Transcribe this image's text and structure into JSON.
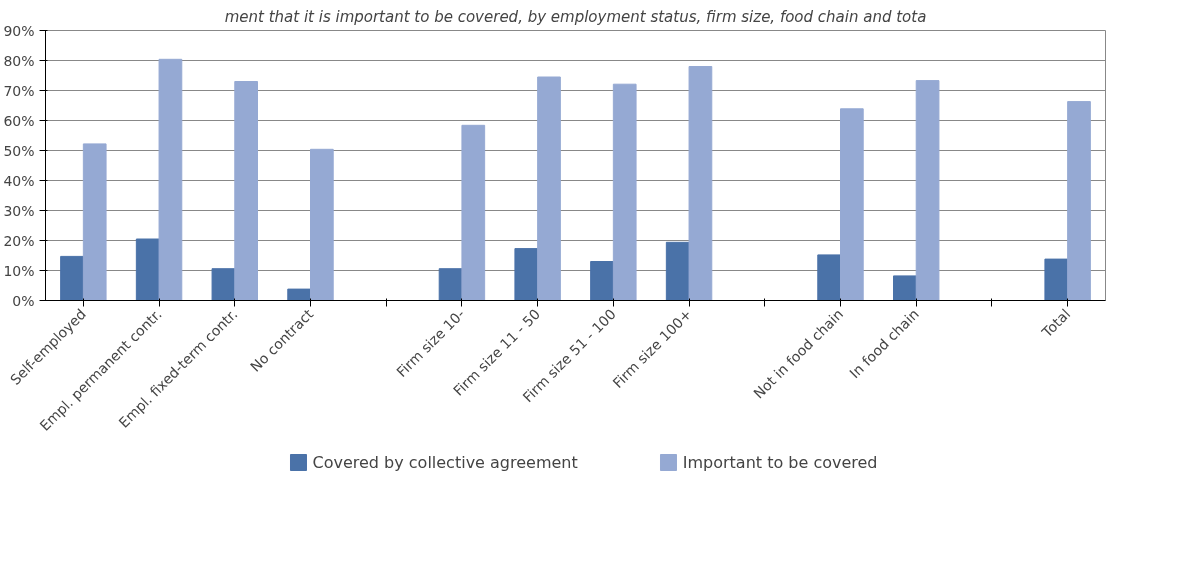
{
  "chart_data": {
    "type": "bar",
    "title": "ment that it is important to be covered, by employment status, firm size, food chain and tota",
    "categories": [
      "Self-employed",
      "Empl. permanent contr.",
      "Empl. fixed-term contr.",
      "No contract",
      null,
      "Firm size 10-",
      "Firm size 11 - 50",
      "Firm size 51 - 100",
      "Firm size 100+",
      null,
      "Not in food chain",
      "In food chain",
      null,
      "Total"
    ],
    "series": [
      {
        "name": "Covered by collective agreement",
        "color": "#4a72a8",
        "values": [
          14.7,
          20.5,
          10.6,
          3.8,
          null,
          10.6,
          17.3,
          13.0,
          19.4,
          null,
          15.2,
          8.2,
          null,
          13.8
        ]
      },
      {
        "name": "Important to be covered",
        "color": "#95a9d3",
        "values": [
          52.2,
          80.4,
          73.0,
          50.4,
          null,
          58.4,
          74.5,
          72.1,
          78.0,
          null,
          63.9,
          73.3,
          null,
          66.3
        ]
      }
    ],
    "ylim": [
      0,
      90
    ],
    "yticks": [
      {
        "value": 0,
        "label": "0%"
      },
      {
        "value": 10,
        "label": "10%"
      },
      {
        "value": 20,
        "label": "20%"
      },
      {
        "value": 30,
        "label": "30%"
      },
      {
        "value": 40,
        "label": "40%"
      },
      {
        "value": 50,
        "label": "50%"
      },
      {
        "value": 60,
        "label": "60%"
      },
      {
        "value": 70,
        "label": "70%"
      },
      {
        "value": 80,
        "label": "80%"
      },
      {
        "value": 90,
        "label": "90%"
      }
    ],
    "grid": "y",
    "legend": "bottom"
  }
}
